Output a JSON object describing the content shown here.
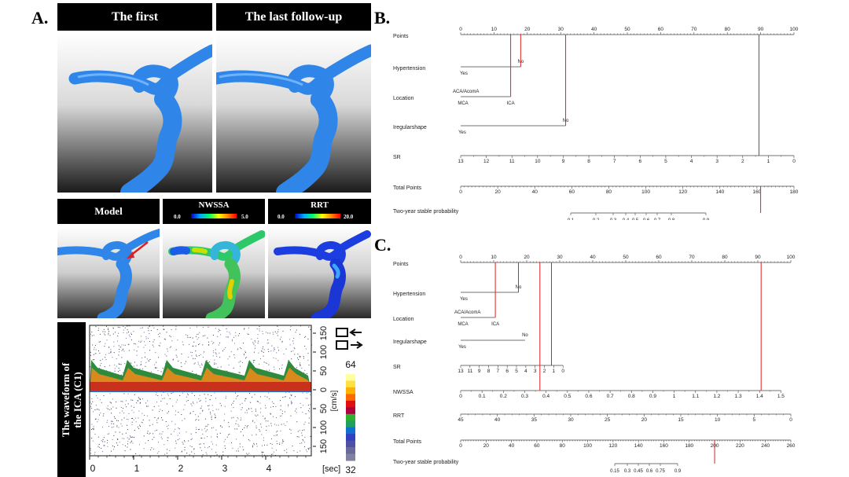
{
  "panel_labels": {
    "a": "A.",
    "b": "B.",
    "c": "C."
  },
  "panel_a": {
    "headers": {
      "first": "The first",
      "last": "The last follow-up",
      "model": "Model",
      "nwssa": "NWSSA",
      "rrt": "RRT"
    },
    "nwssa_scale": {
      "min": "0.0",
      "max": "5.0"
    },
    "rrt_scale": {
      "min": "0.0",
      "max": "20.0"
    },
    "waveform": {
      "side_title_1": "The waveform of",
      "side_title_2": "the ICA (C1)",
      "y_ticks": [
        "150",
        "100",
        "50",
        "0",
        "50",
        "100",
        "150"
      ],
      "x_ticks": [
        "0",
        "1",
        "2",
        "3",
        "4"
      ],
      "x_unit": "[sec]",
      "y_unit": "[cm/s]",
      "color_top": "64",
      "color_bottom": "32"
    }
  },
  "nomogram_b": {
    "rows": {
      "points": "Points",
      "hypertension": "Hypertension",
      "location": "Location",
      "irregular": "Iregularshape",
      "sr": "SR",
      "total": "Total Points",
      "prob": "Two-year stable probability"
    },
    "points_ticks": [
      "0",
      "10",
      "20",
      "30",
      "40",
      "50",
      "60",
      "70",
      "80",
      "90",
      "100"
    ],
    "hypertension_labels": {
      "no": "No",
      "yes": "Yes"
    },
    "location_labels": {
      "aca": "ACA/AcomA",
      "mca": "MCA",
      "ica": "ICA"
    },
    "irregular_labels": {
      "no": "No",
      "yes": "Yes"
    },
    "sr_ticks": [
      "13",
      "12",
      "11",
      "10",
      "9",
      "8",
      "7",
      "6",
      "5",
      "4",
      "3",
      "2",
      "1",
      "0"
    ],
    "total_ticks": [
      "0",
      "20",
      "40",
      "60",
      "80",
      "100",
      "120",
      "140",
      "160",
      "180"
    ],
    "prob_ticks": [
      "0.1",
      "0.2",
      "0.3",
      "0.4",
      "0.5",
      "0.6",
      "0.7",
      "0.8",
      "0.9"
    ],
    "red_lines_points": [
      15,
      18,
      31.5,
      89.5
    ],
    "total_marker": 162
  },
  "nomogram_c": {
    "rows": {
      "points": "Points",
      "hypertension": "Hypertension",
      "location": "Location",
      "irregular": "Iregularshape",
      "sr": "SR",
      "nwssa": "NWSSA",
      "rrt": "RRT",
      "total": "Total Points",
      "prob": "Two-year stable probability"
    },
    "points_ticks": [
      "0",
      "10",
      "20",
      "30",
      "40",
      "50",
      "60",
      "70",
      "80",
      "90",
      "100"
    ],
    "hypertension_labels": {
      "no": "No",
      "yes": "Yes"
    },
    "location_labels": {
      "aca": "ACA/AcomA",
      "mca": "MCA",
      "ica": "ICA"
    },
    "irregular_labels": {
      "no": "No",
      "yes": "Yes"
    },
    "sr_ticks": [
      "13",
      "11",
      "9",
      "8",
      "7",
      "6",
      "5",
      "4",
      "3",
      "2",
      "1",
      "0"
    ],
    "nwssa_ticks": [
      "0",
      "0.1",
      "0.2",
      "0.3",
      "0.4",
      "0.5",
      "0.6",
      "0.7",
      "0.8",
      "0.9",
      "1",
      "1.1",
      "1.2",
      "1.3",
      "1.4",
      "1.5"
    ],
    "rrt_ticks": [
      "45",
      "40",
      "35",
      "30",
      "25",
      "20",
      "15",
      "10",
      "5",
      "0"
    ],
    "total_ticks": [
      "0",
      "20",
      "40",
      "60",
      "80",
      "100",
      "120",
      "140",
      "160",
      "180",
      "200",
      "220",
      "240",
      "260"
    ],
    "prob_ticks": [
      "0.15",
      "0.3",
      "0.45",
      "0.6",
      "0.75",
      "0.9"
    ],
    "red_lines_points": [
      10.5,
      17.5,
      24,
      27.5,
      91
    ],
    "total_marker": 200
  }
}
